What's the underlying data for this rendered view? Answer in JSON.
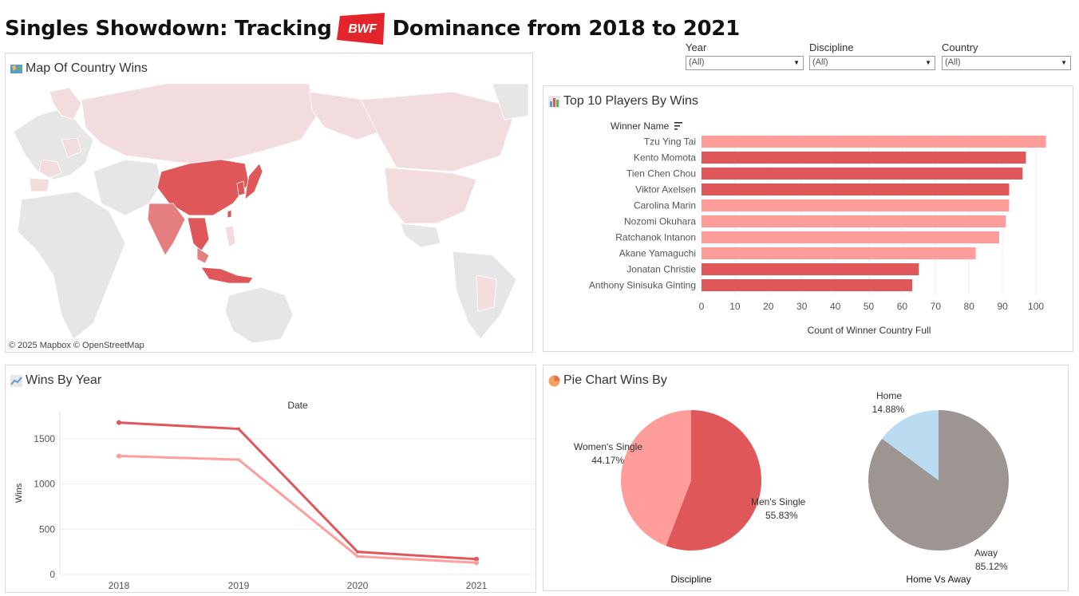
{
  "header": {
    "title_left": "Singles Showdown: Tracking",
    "logo_text": "BWF",
    "title_right": "Dominance from 2018 to 2021"
  },
  "filters": [
    {
      "label": "Year",
      "value": "(All)"
    },
    {
      "label": "Discipline",
      "value": "(All)"
    },
    {
      "label": "Country",
      "value": "(All)"
    }
  ],
  "map_panel": {
    "title": "Map Of Country Wins",
    "copyright": "© 2025 Mapbox  © OpenStreetMap",
    "icon": "map-icon"
  },
  "colors": {
    "dark_red": "#e05759",
    "light_red": "#ff9d9a",
    "pale": "#f3dcdd",
    "grey_land": "#e6e6e6",
    "home_blue": "#bbdcf0",
    "away_grey": "#9c9592"
  },
  "chart_data": [
    {
      "type": "bar",
      "title": "Top 10 Players By Wins",
      "ylabel": "Winner Name",
      "xlabel": "Count of Winner Country Full",
      "xlim": [
        0,
        105
      ],
      "xticks": [
        0,
        10,
        20,
        30,
        40,
        50,
        60,
        70,
        80,
        90,
        100
      ],
      "categories": [
        "Tzu Ying Tai",
        "Kento Momota",
        "Tien Chen Chou",
        "Viktor Axelsen",
        "Carolina Marin",
        "Nozomi Okuhara",
        "Ratchanok Intanon",
        "Akane Yamaguchi",
        "Jonatan Christie",
        "Anthony Sinisuka Ginting"
      ],
      "values": [
        103,
        97,
        96,
        92,
        92,
        91,
        89,
        82,
        65,
        63
      ],
      "discipline": [
        "women",
        "men",
        "men",
        "men",
        "women",
        "women",
        "women",
        "women",
        "men",
        "men"
      ],
      "grid": true
    },
    {
      "type": "line",
      "title": "Wins By Year",
      "xlabel": "Date",
      "ylabel": "Wins",
      "x": [
        "2018",
        "2019",
        "2020",
        "2021"
      ],
      "ylim": [
        0,
        1800
      ],
      "yticks": [
        0,
        500,
        1000,
        1500
      ],
      "series": [
        {
          "values": [
            1680,
            1610,
            250,
            170
          ],
          "color": "#e05759"
        },
        {
          "values": [
            1310,
            1270,
            200,
            130
          ],
          "color": "#ff9d9a"
        }
      ],
      "grid": true
    },
    {
      "type": "pie",
      "title": "Pie Chart Wins By",
      "xlabel": "Discipline",
      "slices": [
        {
          "label": "Men's Single",
          "value": 55.83,
          "display": "55.83%",
          "color": "#e05759"
        },
        {
          "label": "Women's Single",
          "value": 44.17,
          "display": "44.17%",
          "color": "#ff9d9a"
        }
      ]
    },
    {
      "type": "pie",
      "xlabel": "Home Vs Away",
      "slices": [
        {
          "label": "Away",
          "value": 85.12,
          "display": "85.12%",
          "color": "#9c9592"
        },
        {
          "label": "Home",
          "value": 14.88,
          "display": "14.88%",
          "color": "#bbdcf0"
        }
      ]
    }
  ]
}
